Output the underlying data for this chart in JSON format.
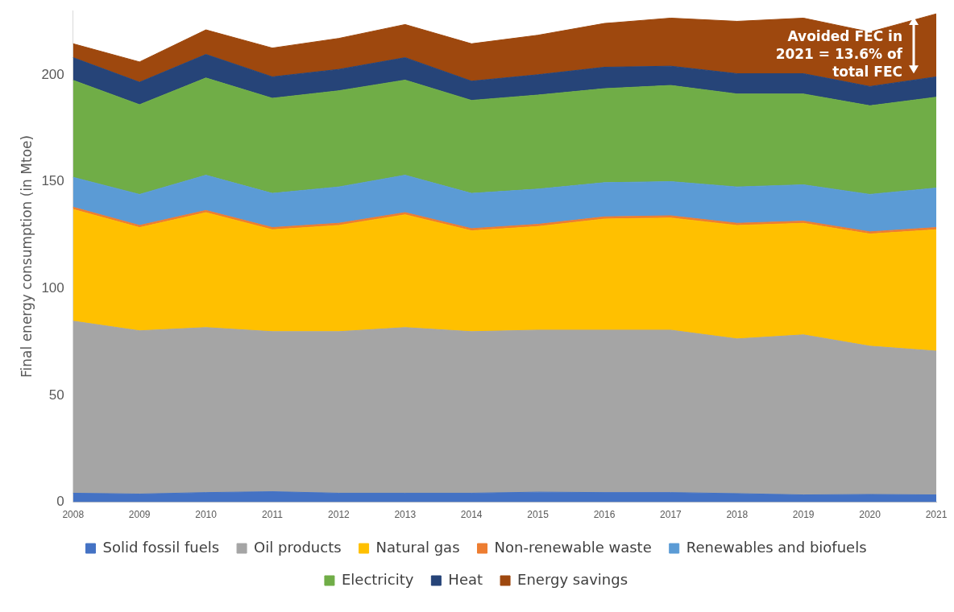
{
  "chart_data": {
    "type": "area",
    "stacked": true,
    "ylabel": "Final energy consumption (in Mtoe)",
    "categories": [
      "2008",
      "2009",
      "2010",
      "2011",
      "2012",
      "2013",
      "2014",
      "2015",
      "2016",
      "2017",
      "2018",
      "2019",
      "2020",
      "2021"
    ],
    "series": [
      {
        "name": "Solid fossil fuels",
        "color": "#4472c4",
        "values": [
          4.2,
          3.8,
          4.5,
          4.9,
          4.2,
          4.2,
          4.2,
          4.7,
          4.5,
          4.5,
          4.0,
          3.4,
          3.6,
          3.4
        ]
      },
      {
        "name": "Oil products",
        "color": "#a5a5a5",
        "values": [
          80.5,
          76.4,
          77.2,
          74.9,
          75.6,
          77.5,
          75.6,
          75.8,
          76.0,
          76.0,
          72.4,
          74.9,
          69.4,
          67.3
        ]
      },
      {
        "name": "Natural gas",
        "color": "#ffc000",
        "values": [
          52.3,
          48.3,
          53.8,
          47.7,
          49.7,
          52.8,
          47.2,
          48.5,
          52.0,
          52.5,
          53.1,
          52.2,
          52.5,
          56.8
        ]
      },
      {
        "name": "Non-renewable waste",
        "color": "#ed7d31",
        "values": [
          1,
          1,
          1,
          1,
          1,
          1,
          1,
          1,
          1,
          1,
          1,
          1,
          1,
          1
        ]
      },
      {
        "name": "Renewables and biofuels",
        "color": "#5b9bd5",
        "values": [
          14,
          14.5,
          16.5,
          16,
          17,
          17.5,
          16.5,
          16.5,
          16,
          16,
          17,
          17,
          17.5,
          18.5
        ]
      },
      {
        "name": "Electricity",
        "color": "#70ad47",
        "values": [
          45.4,
          42,
          45.5,
          44.5,
          45,
          44.5,
          43.5,
          44,
          44,
          45,
          43.5,
          42.5,
          41.5,
          42.5
        ]
      },
      {
        "name": "Heat",
        "color": "#264478",
        "values": [
          10.6,
          10.5,
          11,
          10,
          10,
          10.5,
          9,
          9.5,
          10,
          9,
          9.5,
          9.5,
          9,
          9.5
        ]
      },
      {
        "name": "Energy savings",
        "color": "#9e480e",
        "values": [
          6.5,
          9.5,
          11.5,
          13.5,
          14.5,
          15.5,
          17.5,
          18.5,
          20.5,
          22.5,
          24.5,
          26,
          25.5,
          29.5
        ]
      }
    ],
    "ylim": [
      0,
      230
    ],
    "yticks": [
      0,
      50,
      100,
      150,
      200
    ],
    "grid": false,
    "legend": "bottom",
    "annotations": [
      {
        "text": "Avoided FEC in 2021 = 13.6% of total FEC",
        "x": "2021",
        "y": 214
      }
    ]
  }
}
